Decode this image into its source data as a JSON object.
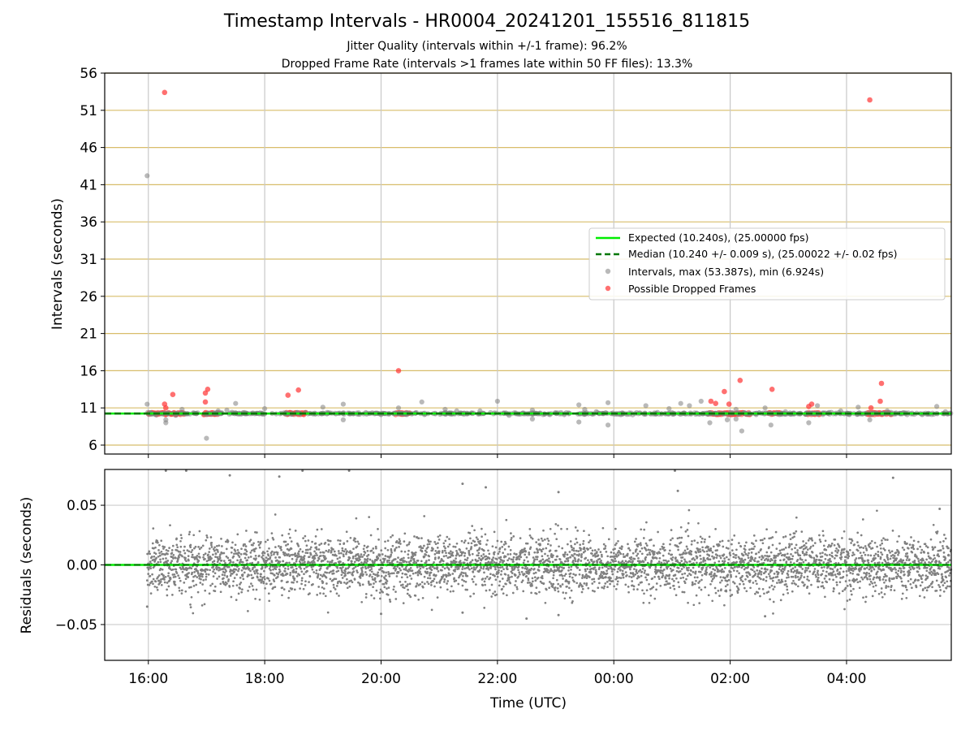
{
  "chart_data": [
    {
      "type": "scatter",
      "title": "Timestamp Intervals - HR0004_20241201_155516_811815",
      "subtitle_lines": [
        "Jitter Quality (intervals within +/-1 frame): 96.2%",
        "Dropped Frame Rate (intervals >1 frames late within 50 FF files): 13.3%"
      ],
      "ylabel": "Intervals (seconds)",
      "xlim_hours": [
        15.25,
        29.8
      ],
      "ylim": [
        4.8,
        56
      ],
      "yticks": [
        "6",
        "11",
        "16",
        "21",
        "26",
        "31",
        "36",
        "41",
        "46",
        "51",
        "56"
      ],
      "grid": true,
      "grid_color": "#d8bd6a",
      "legend_position": "right-middle",
      "expected_line": {
        "y": 10.24,
        "color": "#00ee00"
      },
      "median_line": {
        "y": 10.24,
        "color": "#007700"
      },
      "series": [
        {
          "name": "Expected (10.240s), (25.00000 fps)",
          "kind": "line",
          "color": "#00ee00"
        },
        {
          "name": "Median (10.240 +/- 0.009 s), (25.00022 +/- 0.02 fps)",
          "kind": "dashed",
          "color": "#007700"
        },
        {
          "name": "Intervals, max (53.387s), min (6.924s)",
          "kind": "marker",
          "color": "#808080",
          "points": [
            [
              15.98,
              11.5
            ],
            [
              15.98,
              42.2
            ],
            [
              16.3,
              9.0
            ],
            [
              16.3,
              9.4
            ],
            [
              16.47,
              10.0
            ],
            [
              16.58,
              10.8
            ],
            [
              17.0,
              6.92
            ],
            [
              17.2,
              10.6
            ],
            [
              17.35,
              10.7
            ],
            [
              17.5,
              11.6
            ],
            [
              17.8,
              10.3
            ],
            [
              18.0,
              10.9
            ],
            [
              18.35,
              10.2
            ],
            [
              18.7,
              10.4
            ],
            [
              19.0,
              11.1
            ],
            [
              19.35,
              9.4
            ],
            [
              19.35,
              11.5
            ],
            [
              19.7,
              10.2
            ],
            [
              20.0,
              10.1
            ],
            [
              20.3,
              11.0
            ],
            [
              20.7,
              11.8
            ],
            [
              21.1,
              10.8
            ],
            [
              21.3,
              10.6
            ],
            [
              21.7,
              10.6
            ],
            [
              22.0,
              11.9
            ],
            [
              22.2,
              10.0
            ],
            [
              22.6,
              9.5
            ],
            [
              22.6,
              10.7
            ],
            [
              22.9,
              10.1
            ],
            [
              23.1,
              10.2
            ],
            [
              23.4,
              11.4
            ],
            [
              23.4,
              9.1
            ],
            [
              23.5,
              10.8
            ],
            [
              23.7,
              10.5
            ],
            [
              23.9,
              11.7
            ],
            [
              23.9,
              8.7
            ],
            [
              24.3,
              10.3
            ],
            [
              24.55,
              11.3
            ],
            [
              24.75,
              10.4
            ],
            [
              24.95,
              10.9
            ],
            [
              25.15,
              11.6
            ],
            [
              25.3,
              11.3
            ],
            [
              25.5,
              11.9
            ],
            [
              25.65,
              9.0
            ],
            [
              25.95,
              9.4
            ],
            [
              26.1,
              10.8
            ],
            [
              26.1,
              9.5
            ],
            [
              26.2,
              7.9
            ],
            [
              26.6,
              11.0
            ],
            [
              26.7,
              8.7
            ],
            [
              26.95,
              10.5
            ],
            [
              27.35,
              9.0
            ],
            [
              27.5,
              11.3
            ],
            [
              27.7,
              10.4
            ],
            [
              27.9,
              10.6
            ],
            [
              28.2,
              11.1
            ],
            [
              28.4,
              9.4
            ],
            [
              28.7,
              10.6
            ],
            [
              29.0,
              10.3
            ],
            [
              29.3,
              10.1
            ],
            [
              29.55,
              11.2
            ],
            [
              29.7,
              10.5
            ]
          ]
        },
        {
          "name": "Possible Dropped Frames",
          "kind": "marker",
          "color": "#ff3333",
          "points": [
            [
              16.28,
              53.4
            ],
            [
              16.28,
              11.5
            ],
            [
              16.3,
              11.0
            ],
            [
              16.42,
              12.8
            ],
            [
              16.98,
              13.0
            ],
            [
              17.02,
              13.5
            ],
            [
              16.98,
              11.8
            ],
            [
              18.4,
              12.7
            ],
            [
              18.58,
              13.4
            ],
            [
              20.3,
              16.0
            ],
            [
              25.67,
              11.9
            ],
            [
              25.75,
              11.6
            ],
            [
              25.9,
              13.2
            ],
            [
              25.98,
              11.5
            ],
            [
              26.17,
              14.7
            ],
            [
              26.72,
              13.5
            ],
            [
              27.35,
              11.2
            ],
            [
              27.4,
              11.5
            ],
            [
              28.4,
              52.4
            ],
            [
              28.42,
              11.0
            ],
            [
              28.58,
              11.9
            ],
            [
              28.6,
              14.3
            ]
          ],
          "clusters": [
            [
              16.0,
              16.62
            ],
            [
              16.95,
              17.22
            ],
            [
              18.35,
              18.72
            ],
            [
              20.25,
              20.5
            ],
            [
              25.62,
              26.35
            ],
            [
              26.65,
              26.88
            ],
            [
              27.3,
              27.55
            ],
            [
              28.35,
              28.78
            ]
          ]
        }
      ]
    },
    {
      "type": "scatter",
      "xlabel": "Time (UTC)",
      "ylabel": "Residuals (seconds)",
      "xlim_hours": [
        15.25,
        29.8
      ],
      "ylim": [
        -0.08,
        0.08
      ],
      "yticks": [
        {
          "value": 0.05,
          "label": "0.05"
        },
        {
          "value": 0.0,
          "label": "0.00"
        },
        {
          "value": -0.05,
          "label": "−0.05"
        }
      ],
      "xticks": [
        {
          "hour": 16,
          "label": "16:00"
        },
        {
          "hour": 18,
          "label": "18:00"
        },
        {
          "hour": 20,
          "label": "20:00"
        },
        {
          "hour": 22,
          "label": "22:00"
        },
        {
          "hour": 24,
          "label": "00:00"
        },
        {
          "hour": 26,
          "label": "02:00"
        },
        {
          "hour": 28,
          "label": "04:00"
        }
      ],
      "grid": true,
      "grid_color": "#cccccc",
      "zero_line_color": "#00ee00",
      "points_color": "#808080",
      "data_span_hours": [
        15.98,
        29.8
      ],
      "approx_point_count": 4400,
      "residual_spread_sd": 0.012,
      "outliers": [
        [
          16.3,
          0.079
        ],
        [
          16.65,
          0.079
        ],
        [
          17.4,
          0.075
        ],
        [
          18.25,
          0.074
        ],
        [
          18.65,
          0.079
        ],
        [
          19.45,
          0.079
        ],
        [
          21.4,
          0.068
        ],
        [
          21.8,
          0.065
        ],
        [
          23.05,
          0.061
        ],
        [
          25.1,
          0.062
        ],
        [
          25.05,
          0.079
        ],
        [
          28.8,
          0.073
        ],
        [
          29.6,
          0.047
        ],
        [
          22.5,
          -0.045
        ],
        [
          23.05,
          -0.042
        ],
        [
          26.6,
          -0.043
        ],
        [
          20.0,
          -0.041
        ],
        [
          21.4,
          -0.04
        ],
        [
          15.98,
          -0.035
        ]
      ]
    }
  ]
}
